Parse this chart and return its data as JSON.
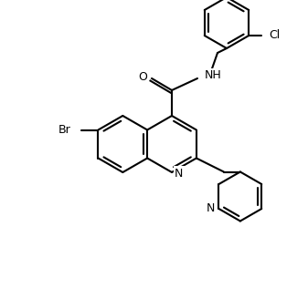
{
  "background_color": "#ffffff",
  "line_color": "#000000",
  "line_width": 1.5,
  "figsize": [
    3.37,
    3.28
  ],
  "dpi": 100,
  "atoms": {
    "Br": "Br",
    "Cl": "Cl",
    "N": "N",
    "O": "O",
    "NH": "NH"
  }
}
